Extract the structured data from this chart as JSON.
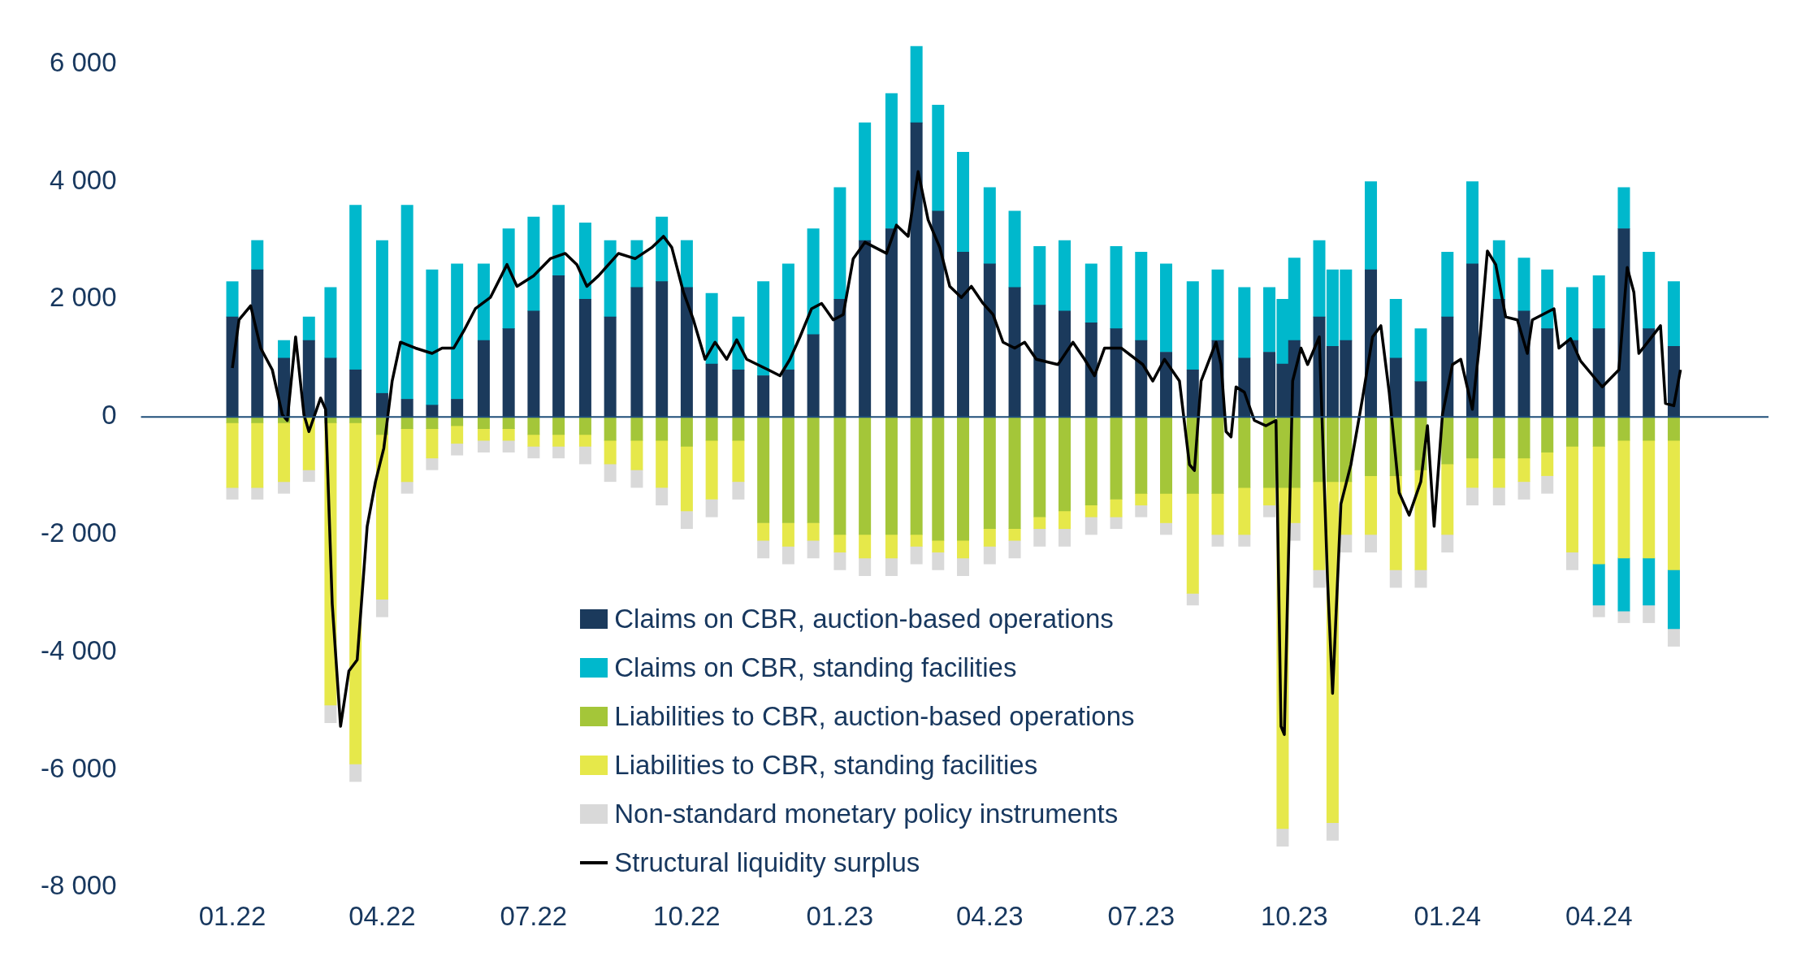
{
  "chart_data": {
    "type": "bar",
    "stacked": true,
    "legend": "bottom",
    "grid": false,
    "x": [
      "2022-01-01",
      "2022-01-16",
      "2022-02-01",
      "2022-02-16",
      "2022-03-01",
      "2022-03-16",
      "2022-04-01",
      "2022-04-16",
      "2022-05-01",
      "2022-05-16",
      "2022-06-01",
      "2022-06-16",
      "2022-07-01",
      "2022-07-16",
      "2022-08-01",
      "2022-08-16",
      "2022-09-01",
      "2022-09-16",
      "2022-10-01",
      "2022-10-16",
      "2022-11-01",
      "2022-11-16",
      "2022-12-01",
      "2022-12-16",
      "2023-01-01",
      "2023-01-16",
      "2023-02-01",
      "2023-02-16",
      "2023-03-01",
      "2023-03-16",
      "2023-04-01",
      "2023-04-16",
      "2023-05-01",
      "2023-05-16",
      "2023-06-01",
      "2023-06-16",
      "2023-07-01",
      "2023-07-16",
      "2023-08-01",
      "2023-08-16",
      "2023-09-01",
      "2023-09-16",
      "2023-09-24",
      "2023-10-01",
      "2023-10-16",
      "2023-10-24",
      "2023-11-01",
      "2023-11-16",
      "2023-12-01",
      "2023-12-16",
      "2024-01-01",
      "2024-01-16",
      "2024-02-01",
      "2024-02-16",
      "2024-03-01",
      "2024-03-16",
      "2024-04-01",
      "2024-04-16",
      "2024-05-01",
      "2024-05-16"
    ],
    "series": [
      {
        "name": "Claims on CBR, auction-based operations",
        "color": "#1b3a5c",
        "values": [
          1700,
          2500,
          1000,
          1300,
          1000,
          800,
          400,
          300,
          200,
          300,
          1300,
          1500,
          1800,
          2400,
          2000,
          1700,
          2200,
          2300,
          2200,
          900,
          800,
          700,
          800,
          1400,
          2000,
          3000,
          3200,
          5000,
          3500,
          2800,
          2600,
          2200,
          1900,
          1800,
          1600,
          1500,
          1300,
          1100,
          800,
          1300,
          1000,
          1100,
          900,
          1300,
          1700,
          1200,
          1300,
          2500,
          1000,
          600,
          1700,
          2600,
          2000,
          1800,
          1500,
          1300,
          1500,
          3200,
          1500,
          1200
        ]
      },
      {
        "name": "Claims on CBR, standing facilities",
        "color": "#00b8cc",
        "values": [
          600,
          500,
          300,
          400,
          1200,
          2800,
          2600,
          3300,
          2300,
          2300,
          1300,
          1700,
          1600,
          1200,
          1300,
          1300,
          800,
          1100,
          800,
          1200,
          900,
          1600,
          1800,
          1800,
          1900,
          2000,
          2300,
          1300,
          1800,
          1700,
          1300,
          1300,
          1000,
          1200,
          1000,
          1400,
          1500,
          1500,
          1500,
          1200,
          1200,
          1100,
          1100,
          1400,
          1300,
          1300,
          1200,
          1500,
          1000,
          900,
          1100,
          1400,
          1000,
          900,
          1000,
          900,
          900,
          700,
          1300,
          1100
        ]
      },
      {
        "name": "Liabilities to CBR, auction-based operations",
        "color": "#a4c639",
        "values": [
          -100,
          -100,
          -100,
          null,
          -100,
          -100,
          -300,
          -200,
          -200,
          -150,
          -200,
          -200,
          -300,
          -300,
          -300,
          -400,
          -400,
          -400,
          -500,
          -400,
          -400,
          -1800,
          -1800,
          -1800,
          -2000,
          -2000,
          -2000,
          -2000,
          -2100,
          -2100,
          -1900,
          -1900,
          -1700,
          -1600,
          -1500,
          -1400,
          -1300,
          -1300,
          -1300,
          -1300,
          -1200,
          -1200,
          -1200,
          -1200,
          -1100,
          -1100,
          -1100,
          -1000,
          -1000,
          -900,
          -800,
          -700,
          -700,
          -700,
          -600,
          -500,
          -500,
          -400,
          -400,
          -400
        ]
      },
      {
        "name": "Liabilities to CBR, standing facilities",
        "color": "#e6e84a",
        "values": [
          -1100,
          -1100,
          -1000,
          -900,
          -4800,
          -5800,
          -2800,
          -900,
          -500,
          -300,
          -200,
          -200,
          -200,
          -200,
          -200,
          -400,
          -500,
          -800,
          -1100,
          -1000,
          -700,
          -300,
          -400,
          -300,
          -300,
          -400,
          -400,
          -200,
          -200,
          -300,
          -300,
          -200,
          -200,
          -300,
          -200,
          -300,
          -200,
          -500,
          -1700,
          -700,
          -800,
          -300,
          -5800,
          -600,
          -1500,
          -5800,
          -900,
          -1000,
          -1600,
          -1700,
          -1200,
          -500,
          -500,
          -400,
          -400,
          -1800,
          -2000,
          -2000,
          -2000,
          -2200
        ]
      },
      {
        "color": "#00b8cc",
        "values": [
          null,
          null,
          null,
          null,
          null,
          null,
          null,
          null,
          null,
          null,
          null,
          null,
          null,
          null,
          null,
          null,
          null,
          null,
          null,
          null,
          null,
          null,
          null,
          null,
          null,
          null,
          null,
          null,
          null,
          null,
          null,
          null,
          null,
          null,
          null,
          null,
          null,
          null,
          null,
          null,
          null,
          null,
          null,
          null,
          null,
          null,
          null,
          null,
          null,
          null,
          null,
          null,
          null,
          null,
          null,
          null,
          -700,
          -900,
          -800,
          -1000
        ]
      },
      {
        "name": "Non-standard monetary policy instruments",
        "color": "#d9d9d9",
        "values": [
          -200,
          -200,
          -200,
          -200,
          -300,
          -300,
          -300,
          -200,
          -200,
          -200,
          -200,
          -200,
          -200,
          -200,
          -300,
          -300,
          -300,
          -300,
          -300,
          -300,
          -300,
          -300,
          -300,
          -300,
          -300,
          -300,
          -300,
          -300,
          -300,
          -300,
          -300,
          -300,
          -300,
          -300,
          -300,
          -200,
          -200,
          -200,
          -200,
          -200,
          -200,
          -200,
          -300,
          -300,
          -300,
          -300,
          -300,
          -300,
          -300,
          -300,
          -300,
          -300,
          -300,
          -300,
          -300,
          -300,
          -200,
          -200,
          -300,
          -300
        ]
      },
      {
        "name": "Structural liquidity surplus",
        "type": "line",
        "color": "#000000",
        "x": [
          "2022-01-01",
          "2022-01-05",
          "2022-01-12",
          "2022-01-18",
          "2022-01-25",
          "2022-01-31",
          "2022-02-03",
          "2022-02-08",
          "2022-02-13",
          "2022-02-16",
          "2022-02-23",
          "2022-02-26",
          "2022-03-02",
          "2022-03-07",
          "2022-03-12",
          "2022-03-17",
          "2022-03-23",
          "2022-03-28",
          "2022-04-02",
          "2022-04-07",
          "2022-04-12",
          "2022-04-21",
          "2022-05-01",
          "2022-05-07",
          "2022-05-14",
          "2022-05-20",
          "2022-05-27",
          "2022-06-05",
          "2022-06-15",
          "2022-06-21",
          "2022-07-01",
          "2022-07-11",
          "2022-07-20",
          "2022-07-27",
          "2022-08-02",
          "2022-08-09",
          "2022-08-21",
          "2022-08-31",
          "2022-09-10",
          "2022-09-17",
          "2022-09-22",
          "2022-09-29",
          "2022-10-05",
          "2022-10-12",
          "2022-10-18",
          "2022-10-25",
          "2022-10-31",
          "2022-11-06",
          "2022-11-19",
          "2022-11-26",
          "2022-12-02",
          "2022-12-08",
          "2022-12-15",
          "2022-12-21",
          "2022-12-28",
          "2023-01-03",
          "2023-01-09",
          "2023-01-16",
          "2023-01-29",
          "2023-02-04",
          "2023-02-11",
          "2023-02-17",
          "2023-02-23",
          "2023-03-02",
          "2023-03-08",
          "2023-03-15",
          "2023-03-21",
          "2023-03-28",
          "2023-04-03",
          "2023-04-09",
          "2023-04-16",
          "2023-04-22",
          "2023-04-29",
          "2023-05-12",
          "2023-05-21",
          "2023-05-28",
          "2023-06-03",
          "2023-06-09",
          "2023-06-19",
          "2023-07-02",
          "2023-07-08",
          "2023-07-15",
          "2023-07-24",
          "2023-07-30",
          "2023-08-02",
          "2023-08-06",
          "2023-08-15",
          "2023-08-18",
          "2023-08-21",
          "2023-08-24",
          "2023-08-27",
          "2023-09-01",
          "2023-09-07",
          "2023-09-14",
          "2023-09-20",
          "2023-09-23",
          "2023-09-25",
          "2023-09-30",
          "2023-10-05",
          "2023-10-09",
          "2023-10-16",
          "2023-10-21",
          "2023-10-24",
          "2023-10-29",
          "2023-11-04",
          "2023-11-11",
          "2023-11-17",
          "2023-11-22",
          "2023-11-27",
          "2023-12-03",
          "2023-12-09",
          "2023-12-16",
          "2023-12-20",
          "2023-12-24",
          "2023-12-29",
          "2024-01-04",
          "2024-01-09",
          "2024-01-16",
          "2024-01-20",
          "2024-01-25",
          "2024-01-30",
          "2024-02-05",
          "2024-02-12",
          "2024-02-18",
          "2024-02-21",
          "2024-03-05",
          "2024-03-08",
          "2024-03-15",
          "2024-03-21",
          "2024-04-03",
          "2024-04-13",
          "2024-04-18",
          "2024-04-22",
          "2024-04-25",
          "2024-05-08",
          "2024-05-11",
          "2024-05-16",
          "2024-05-20"
        ],
        "values": [
          830,
          1650,
          1890,
          1170,
          800,
          40,
          -60,
          1360,
          40,
          -250,
          320,
          130,
          -3180,
          -5260,
          -4320,
          -4130,
          -1860,
          -1100,
          -530,
          610,
          1270,
          1170,
          1080,
          1170,
          1170,
          1460,
          1840,
          2030,
          2590,
          2220,
          2400,
          2690,
          2780,
          2590,
          2220,
          2400,
          2780,
          2690,
          2880,
          3070,
          2880,
          2120,
          1650,
          980,
          1270,
          980,
          1310,
          980,
          800,
          700,
          980,
          1360,
          1840,
          1930,
          1650,
          1740,
          2690,
          2970,
          2780,
          3260,
          3070,
          4170,
          3350,
          2880,
          2220,
          2030,
          2220,
          1930,
          1740,
          1270,
          1170,
          1270,
          980,
          890,
          1270,
          980,
          700,
          1170,
          1170,
          890,
          610,
          980,
          610,
          -810,
          -910,
          610,
          1270,
          890,
          -250,
          -340,
          510,
          420,
          -60,
          -150,
          -60,
          -5260,
          -5400,
          610,
          1170,
          890,
          1360,
          -2800,
          -4700,
          -1480,
          -810,
          320,
          1360,
          1550,
          420,
          -1290,
          -1670,
          -1100,
          -150,
          -1860,
          40,
          890,
          980,
          130,
          1170,
          2820,
          2590,
          1700,
          1650,
          1080,
          1650,
          1840,
          1170,
          1330,
          950,
          510,
          800,
          2540,
          2120,
          1080,
          1550,
          230,
          190,
          800
        ]
      }
    ],
    "ylim": [
      -8000,
      6400
    ],
    "yticks": [
      {
        "value": -8000,
        "label": "-8 000"
      },
      {
        "value": -6000,
        "label": "-6 000"
      },
      {
        "value": -4000,
        "label": "-4 000"
      },
      {
        "value": -2000,
        "label": "-2 000"
      },
      0,
      {
        "value": 2000,
        "label": "2 000"
      },
      {
        "value": 4000,
        "label": "4 000"
      },
      {
        "value": 6000,
        "label": "6 000"
      }
    ],
    "xlim": [
      "2021-12-26",
      "2024-05-24"
    ],
    "xticks": [
      {
        "value": "2022-01-01",
        "label": "01.22"
      },
      {
        "value": "2022-04-01",
        "label": "04.22"
      },
      {
        "value": "2022-07-01",
        "label": "07.22"
      },
      {
        "value": "2022-10-01",
        "label": "10.22"
      },
      {
        "value": "2023-01-01",
        "label": "01.23"
      },
      {
        "value": "2023-04-01",
        "label": "04.23"
      },
      {
        "value": "2023-07-01",
        "label": "07.23"
      },
      {
        "value": "2023-10-01",
        "label": "10.23"
      },
      {
        "value": "2024-01-01",
        "label": "01.24"
      },
      {
        "value": "2024-04-01",
        "label": "04.24"
      }
    ],
    "ref_lines": [
      {
        "axis": "y",
        "value": 0,
        "color": "#1f4e79"
      }
    ]
  }
}
